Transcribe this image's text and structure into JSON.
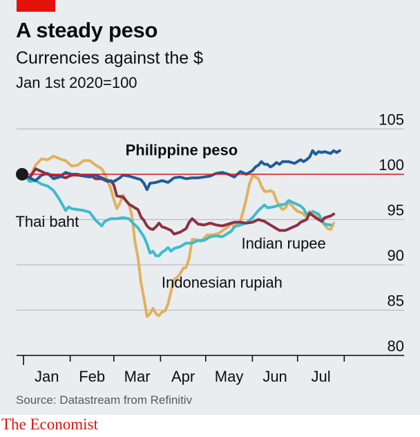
{
  "header": {
    "title": "A steady peso",
    "subtitle": "Currencies against the $",
    "index_note": "Jan 1st 2020=100"
  },
  "footer": {
    "source": "Source: Datastream from Refinitiv",
    "brand": "The Economist"
  },
  "colors": {
    "background": "#e9edf0",
    "accent_red": "#e3120b",
    "baseline": "#e3120b",
    "grid": "#b5bcc3",
    "axis": "#0d0d0d"
  },
  "chart_data": {
    "type": "line",
    "x_unit": "days since Jan 1st 2020",
    "xlim": [
      0,
      220
    ],
    "ylim": [
      79.5,
      107
    ],
    "yticks": [
      80,
      85,
      90,
      95,
      100,
      105
    ],
    "baseline": 100,
    "grid": true,
    "start_marker": {
      "x": 0,
      "y": 100
    },
    "xtick_labels": [
      {
        "label": "Jan",
        "mid": 15.5
      },
      {
        "label": "Feb",
        "mid": 45.5
      },
      {
        "label": "Mar",
        "mid": 75.5
      },
      {
        "label": "Apr",
        "mid": 106
      },
      {
        "label": "May",
        "mid": 136.5
      },
      {
        "label": "Jun",
        "mid": 167
      },
      {
        "label": "Jul",
        "mid": 197.5
      }
    ],
    "xtick_bounds": [
      0,
      31,
      60,
      91,
      121,
      152,
      182,
      213
    ],
    "series": [
      {
        "name": "Philippine peso",
        "color": "#1f5c99",
        "label_anchor": [
          70,
          102.1
        ],
        "label_bold": true,
        "points": [
          [
            0,
            100
          ],
          [
            4,
            99.6
          ],
          [
            8,
            99.3
          ],
          [
            12,
            99.9
          ],
          [
            16,
            100.1
          ],
          [
            20,
            99.5
          ],
          [
            24,
            99.7
          ],
          [
            28,
            100.2
          ],
          [
            32,
            100
          ],
          [
            36,
            100
          ],
          [
            40,
            99.8
          ],
          [
            44,
            99.7
          ],
          [
            48,
            99.9
          ],
          [
            52,
            99.6
          ],
          [
            56,
            99.3
          ],
          [
            60,
            99.2
          ],
          [
            64,
            99.6
          ],
          [
            66,
            99.9
          ],
          [
            70,
            99.8
          ],
          [
            74,
            99.6
          ],
          [
            78,
            99.4
          ],
          [
            80,
            99
          ],
          [
            82,
            98.3
          ],
          [
            84,
            99
          ],
          [
            88,
            99.1
          ],
          [
            92,
            99.3
          ],
          [
            96,
            99.1
          ],
          [
            100,
            99.6
          ],
          [
            104,
            99.7
          ],
          [
            108,
            99.5
          ],
          [
            112,
            99.6
          ],
          [
            116,
            99.6
          ],
          [
            120,
            99.7
          ],
          [
            124,
            99.8
          ],
          [
            128,
            100.1
          ],
          [
            132,
            100.2
          ],
          [
            136,
            100
          ],
          [
            140,
            99.7
          ],
          [
            144,
            100.3
          ],
          [
            148,
            100
          ],
          [
            152,
            100.4
          ],
          [
            154,
            100.8
          ],
          [
            156,
            101
          ],
          [
            158,
            101.4
          ],
          [
            160,
            101.1
          ],
          [
            162,
            101.1
          ],
          [
            164,
            100.8
          ],
          [
            166,
            101
          ],
          [
            168,
            101.3
          ],
          [
            170,
            101.1
          ],
          [
            172,
            101.4
          ],
          [
            176,
            101.4
          ],
          [
            180,
            101.2
          ],
          [
            184,
            101.6
          ],
          [
            186,
            101.4
          ],
          [
            188,
            101.6
          ],
          [
            190,
            101.9
          ],
          [
            192,
            102.6
          ],
          [
            194,
            102.2
          ],
          [
            196,
            102.5
          ],
          [
            198,
            102.4
          ],
          [
            200,
            102.5
          ],
          [
            204,
            102.3
          ],
          [
            206,
            102.6
          ],
          [
            208,
            102.4
          ],
          [
            210,
            102.6
          ]
        ]
      },
      {
        "name": "Thai baht",
        "color": "#3ebbcc",
        "label_anchor": [
          -3,
          94.2
        ],
        "label_bold": false,
        "points": [
          [
            0,
            100
          ],
          [
            4,
            99.2
          ],
          [
            8,
            99.3
          ],
          [
            12,
            98.9
          ],
          [
            16,
            98.7
          ],
          [
            20,
            98.2
          ],
          [
            24,
            97.2
          ],
          [
            28,
            96
          ],
          [
            30,
            96.4
          ],
          [
            32,
            96.2
          ],
          [
            36,
            96.1
          ],
          [
            40,
            96
          ],
          [
            44,
            95.8
          ],
          [
            48,
            94.9
          ],
          [
            52,
            94.3
          ],
          [
            54,
            94.8
          ],
          [
            58,
            95.1
          ],
          [
            62,
            95.1
          ],
          [
            66,
            95.2
          ],
          [
            70,
            95.1
          ],
          [
            74,
            94.4
          ],
          [
            76,
            94.1
          ],
          [
            78,
            93.6
          ],
          [
            80,
            93.1
          ],
          [
            82,
            92.3
          ],
          [
            84,
            91.3
          ],
          [
            86,
            91.5
          ],
          [
            88,
            91
          ],
          [
            90,
            91
          ],
          [
            92,
            91.4
          ],
          [
            94,
            91.6
          ],
          [
            96,
            91.9
          ],
          [
            98,
            91.5
          ],
          [
            100,
            91.8
          ],
          [
            104,
            92
          ],
          [
            108,
            92.4
          ],
          [
            112,
            92.4
          ],
          [
            116,
            92.7
          ],
          [
            120,
            92.7
          ],
          [
            124,
            93.1
          ],
          [
            128,
            93.2
          ],
          [
            132,
            93.1
          ],
          [
            136,
            93.5
          ],
          [
            138,
            93.7
          ],
          [
            140,
            94.2
          ],
          [
            144,
            94.4
          ],
          [
            148,
            94.6
          ],
          [
            152,
            95.2
          ],
          [
            156,
            96
          ],
          [
            160,
            96.6
          ],
          [
            162,
            96.3
          ],
          [
            166,
            96.4
          ],
          [
            170,
            96.6
          ],
          [
            174,
            96.7
          ],
          [
            176,
            97.1
          ],
          [
            180,
            96.8
          ],
          [
            184,
            96.5
          ],
          [
            186,
            96.2
          ],
          [
            188,
            95.6
          ],
          [
            190,
            95.6
          ],
          [
            192,
            95.9
          ],
          [
            196,
            95.6
          ],
          [
            198,
            95
          ],
          [
            200,
            94.5
          ],
          [
            204,
            94.4
          ]
        ]
      },
      {
        "name": "Indian rupee",
        "color": "#8e3043",
        "label_anchor": [
          147,
          91.8
        ],
        "label_bold": false,
        "points": [
          [
            0,
            100
          ],
          [
            4,
            99.6
          ],
          [
            8,
            100.6
          ],
          [
            12,
            100.3
          ],
          [
            16,
            100
          ],
          [
            20,
            99.9
          ],
          [
            24,
            99.8
          ],
          [
            28,
            99.6
          ],
          [
            32,
            99.9
          ],
          [
            36,
            99.9
          ],
          [
            40,
            99.8
          ],
          [
            44,
            99.9
          ],
          [
            48,
            99.5
          ],
          [
            52,
            99.5
          ],
          [
            56,
            99.2
          ],
          [
            58,
            99.3
          ],
          [
            60,
            98.8
          ],
          [
            62,
            97.6
          ],
          [
            66,
            97.5
          ],
          [
            70,
            96.7
          ],
          [
            74,
            96.3
          ],
          [
            76,
            96.1
          ],
          [
            78,
            95.3
          ],
          [
            80,
            94.9
          ],
          [
            82,
            94.3
          ],
          [
            84,
            94
          ],
          [
            86,
            93.9
          ],
          [
            88,
            94.2
          ],
          [
            90,
            94.6
          ],
          [
            92,
            94.2
          ],
          [
            94,
            94.1
          ],
          [
            98,
            93.8
          ],
          [
            100,
            93.4
          ],
          [
            104,
            93.6
          ],
          [
            108,
            94
          ],
          [
            110,
            94.7
          ],
          [
            112,
            95.1
          ],
          [
            116,
            94.5
          ],
          [
            120,
            94.4
          ],
          [
            124,
            94.6
          ],
          [
            128,
            94.4
          ],
          [
            132,
            94.3
          ],
          [
            136,
            94.5
          ],
          [
            140,
            94.7
          ],
          [
            144,
            94.7
          ],
          [
            148,
            94.6
          ],
          [
            152,
            94.7
          ],
          [
            156,
            95
          ],
          [
            160,
            94.8
          ],
          [
            164,
            94.4
          ],
          [
            168,
            94
          ],
          [
            170,
            93.8
          ],
          [
            174,
            93.8
          ],
          [
            178,
            94.1
          ],
          [
            182,
            94.4
          ],
          [
            184,
            94.7
          ],
          [
            188,
            95
          ],
          [
            190,
            95.7
          ],
          [
            194,
            95.2
          ],
          [
            198,
            94.8
          ],
          [
            200,
            95.2
          ],
          [
            204,
            95.4
          ],
          [
            206,
            95.6
          ]
        ]
      },
      {
        "name": "Indonesian rupiah",
        "color": "#e2b15d",
        "label_anchor": [
          94,
          87.5
        ],
        "label_bold": false,
        "points": [
          [
            0,
            100
          ],
          [
            4,
            99.5
          ],
          [
            8,
            101
          ],
          [
            12,
            101.7
          ],
          [
            16,
            101.6
          ],
          [
            20,
            102
          ],
          [
            24,
            101.7
          ],
          [
            28,
            101.5
          ],
          [
            32,
            100.9
          ],
          [
            36,
            101
          ],
          [
            40,
            101.5
          ],
          [
            44,
            101.5
          ],
          [
            48,
            101
          ],
          [
            50,
            100.8
          ],
          [
            52,
            100.6
          ],
          [
            54,
            100
          ],
          [
            56,
            99.3
          ],
          [
            58,
            98.4
          ],
          [
            60,
            97.2
          ],
          [
            62,
            96.2
          ],
          [
            64,
            96.8
          ],
          [
            66,
            97.7
          ],
          [
            68,
            97.1
          ],
          [
            70,
            96.7
          ],
          [
            72,
            95.4
          ],
          [
            74,
            92.6
          ],
          [
            76,
            90.8
          ],
          [
            78,
            88.1
          ],
          [
            80,
            86.3
          ],
          [
            82,
            84.3
          ],
          [
            84,
            84.6
          ],
          [
            86,
            85.2
          ],
          [
            88,
            84.6
          ],
          [
            90,
            84.4
          ],
          [
            92,
            84.8
          ],
          [
            94,
            84.9
          ],
          [
            96,
            85.7
          ],
          [
            98,
            87.1
          ],
          [
            100,
            88.4
          ],
          [
            102,
            88.6
          ],
          [
            104,
            89
          ],
          [
            106,
            89.6
          ],
          [
            108,
            89.7
          ],
          [
            110,
            90.7
          ],
          [
            112,
            92.8
          ],
          [
            114,
            92.8
          ],
          [
            118,
            92.6
          ],
          [
            122,
            93.3
          ],
          [
            126,
            93.3
          ],
          [
            130,
            93.5
          ],
          [
            134,
            94
          ],
          [
            136,
            94.2
          ],
          [
            138,
            94.6
          ],
          [
            140,
            94.2
          ],
          [
            142,
            94.6
          ],
          [
            144,
            94.8
          ],
          [
            146,
            96
          ],
          [
            148,
            97.3
          ],
          [
            150,
            98.9
          ],
          [
            152,
            99.8
          ],
          [
            154,
            99.7
          ],
          [
            156,
            99.5
          ],
          [
            158,
            98.7
          ],
          [
            160,
            98.1
          ],
          [
            162,
            98.1
          ],
          [
            164,
            98.2
          ],
          [
            166,
            98
          ],
          [
            168,
            97.1
          ],
          [
            170,
            96.5
          ],
          [
            172,
            96.1
          ],
          [
            174,
            96.3
          ],
          [
            176,
            96.9
          ],
          [
            178,
            96.6
          ],
          [
            180,
            96.2
          ],
          [
            182,
            95.9
          ],
          [
            184,
            95.8
          ],
          [
            186,
            95.6
          ],
          [
            188,
            95.3
          ],
          [
            190,
            95.9
          ],
          [
            192,
            95.5
          ],
          [
            194,
            95.4
          ],
          [
            196,
            95.3
          ],
          [
            198,
            94.8
          ],
          [
            200,
            94.4
          ],
          [
            202,
            94
          ],
          [
            204,
            93.9
          ],
          [
            206,
            94.6
          ]
        ]
      }
    ]
  }
}
